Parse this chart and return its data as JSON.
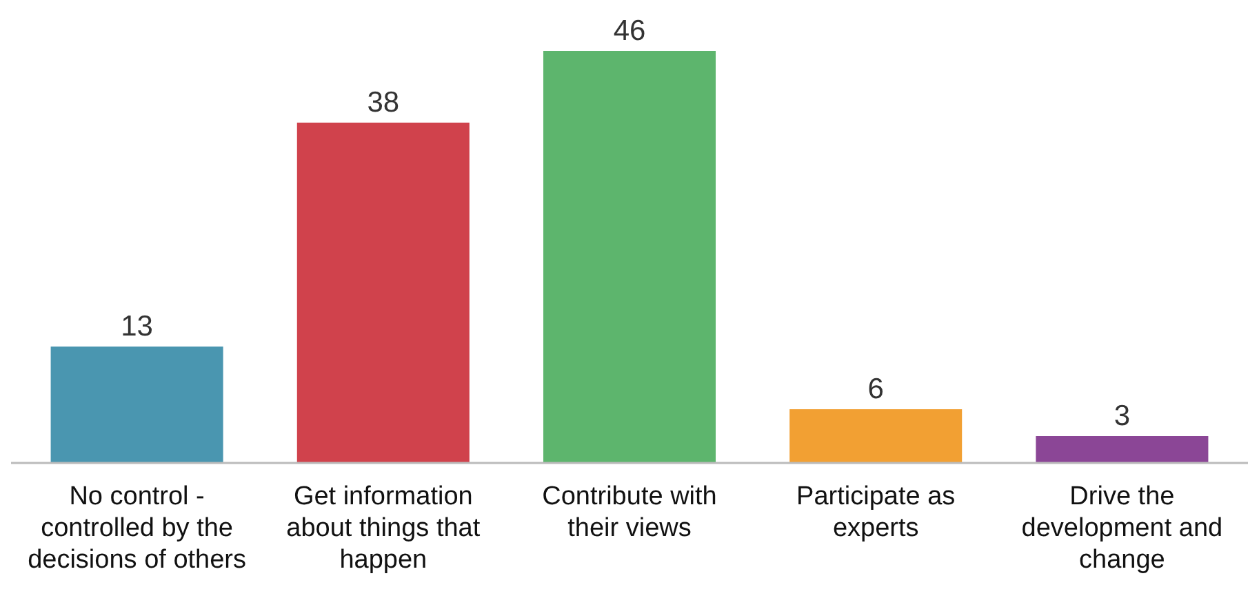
{
  "chart_data": {
    "type": "bar",
    "categories": [
      "No control - controlled by the decisions of others",
      "Get information about things that happen",
      "Contribute with their views",
      "Participate as experts",
      "Drive the development and change"
    ],
    "values": [
      13,
      38,
      46,
      6,
      3
    ],
    "colors": [
      "#4a96b0",
      "#d0424c",
      "#5db56d",
      "#f2a033",
      "#8b4696"
    ],
    "data_labels": true
  }
}
